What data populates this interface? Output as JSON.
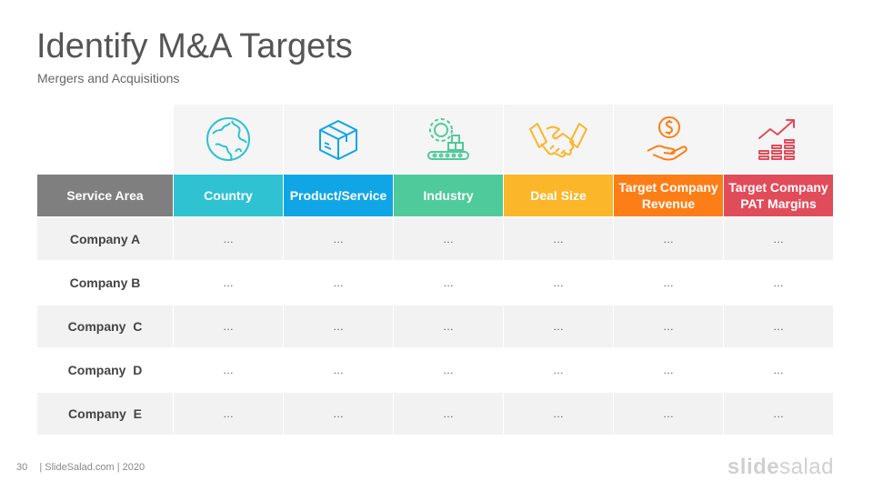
{
  "title": "Identify M&A Targets",
  "subtitle": "Mergers and Acquisitions",
  "colors": {
    "service_area": "#7f7f7f",
    "country": "#2ec2d3",
    "product": "#10a6e5",
    "industry": "#4fca9b",
    "deal_size": "#fbb62a",
    "revenue": "#fd7e16",
    "pat": "#e14c5a"
  },
  "table": {
    "corner_header": "Service Area",
    "columns": [
      {
        "label": "Country",
        "icon": "globe-icon"
      },
      {
        "label": "Product/Service",
        "icon": "box-icon"
      },
      {
        "label": "Industry",
        "icon": "factory-gear-icon"
      },
      {
        "label": "Deal Size",
        "icon": "handshake-icon"
      },
      {
        "label": "Target Company Revenue",
        "icon": "money-hand-icon"
      },
      {
        "label": "Target Company PAT Margins",
        "icon": "growth-chart-icon"
      }
    ],
    "rows": [
      {
        "label": "Company A",
        "cells": [
          "…",
          "…",
          "…",
          "…",
          "…",
          "…"
        ]
      },
      {
        "label": "Company B",
        "cells": [
          "…",
          "…",
          "…",
          "…",
          "…",
          "…"
        ]
      },
      {
        "label": "Company  C",
        "cells": [
          "…",
          "…",
          "…",
          "…",
          "…",
          "…"
        ]
      },
      {
        "label": "Company  D",
        "cells": [
          "…",
          "…",
          "…",
          "…",
          "…",
          "…"
        ]
      },
      {
        "label": "Company  E",
        "cells": [
          "…",
          "…",
          "…",
          "…",
          "…",
          "…"
        ]
      }
    ]
  },
  "footer": {
    "page_number": "30",
    "text": "| SlideSalad.com | 2020"
  },
  "brand": {
    "part1": "slide",
    "part2": "salad"
  }
}
